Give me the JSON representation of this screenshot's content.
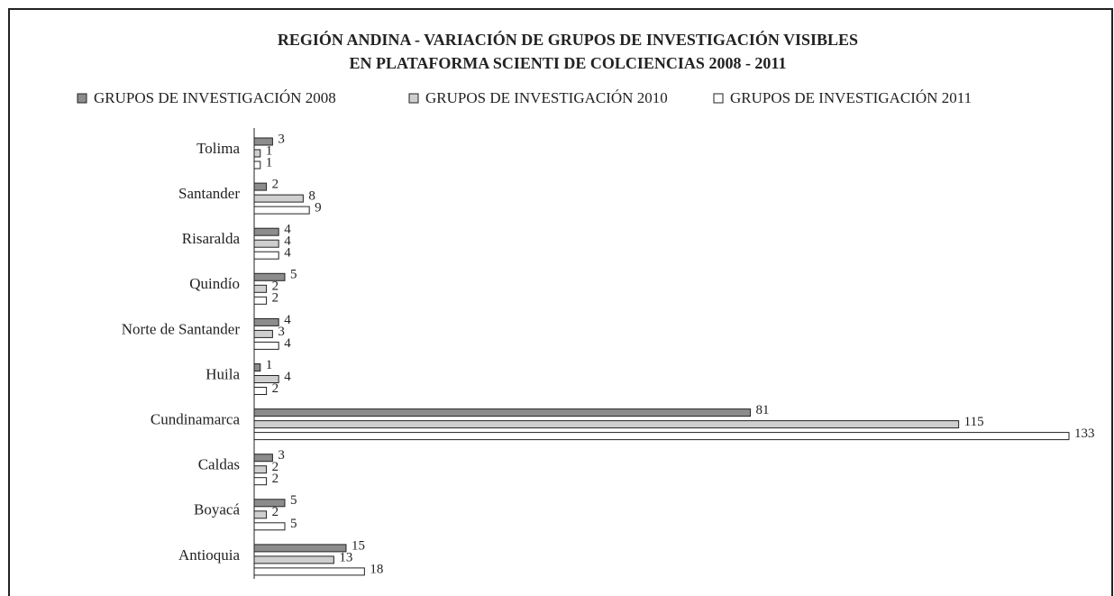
{
  "chart_data": {
    "type": "bar",
    "orientation": "horizontal",
    "title": "REGIÓN ANDINA - VARIACIÓN DE GRUPOS DE INVESTIGACIÓN VISIBLES",
    "subtitle": "EN PLATAFORMA SCIENTI DE COLCIENCIAS 2008 - 2011",
    "categories": [
      "Tolima",
      "Santander",
      "Risaralda",
      "Quindío",
      "Norte de  Santander",
      "Huila",
      "Cundinamarca",
      "Caldas",
      "Boyacá",
      "Antioquia"
    ],
    "series": [
      {
        "name": "GRUPOS DE INVESTIGACIÓN 2008",
        "color": "#8c8c8c",
        "values": [
          3,
          2,
          4,
          5,
          4,
          1,
          81,
          3,
          5,
          15
        ]
      },
      {
        "name": "GRUPOS DE INVESTIGACIÓN 2010",
        "color": "#cfcfcf",
        "values": [
          1,
          8,
          4,
          2,
          3,
          4,
          115,
          2,
          2,
          13
        ]
      },
      {
        "name": "GRUPOS DE INVESTIGACIÓN 2011",
        "color": "#ffffff",
        "values": [
          1,
          9,
          4,
          2,
          4,
          2,
          133,
          2,
          5,
          18
        ]
      }
    ],
    "legend": "top"
  }
}
